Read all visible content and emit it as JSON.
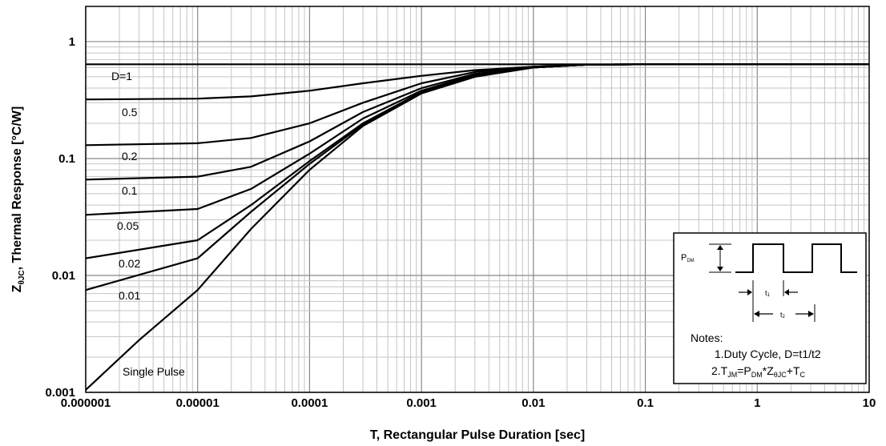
{
  "chart_data": {
    "type": "line",
    "x_scale": "log",
    "y_scale": "log",
    "xlim": [
      1e-06,
      10
    ],
    "ylim": [
      0.001,
      2
    ],
    "grid": true,
    "xlabel": "T, Rectangular Pulse Duration [sec]",
    "ylabel_main": "Z",
    "ylabel_sub": "θJC",
    "ylabel_rest": ", Thermal Response [°C/W]",
    "x_ticks": [
      {
        "value": 1e-06,
        "label": "0.000001"
      },
      {
        "value": 1e-05,
        "label": "0.00001"
      },
      {
        "value": 0.0001,
        "label": "0.0001"
      },
      {
        "value": 0.001,
        "label": "0.001"
      },
      {
        "value": 0.01,
        "label": "0.01"
      },
      {
        "value": 0.1,
        "label": "0.1"
      },
      {
        "value": 1,
        "label": "1"
      },
      {
        "value": 10,
        "label": "10"
      }
    ],
    "y_ticks": [
      {
        "value": 0.001,
        "label": "0.001"
      },
      {
        "value": 0.01,
        "label": "0.01"
      },
      {
        "value": 0.1,
        "label": "0.1"
      },
      {
        "value": 1,
        "label": "1"
      }
    ],
    "series": [
      {
        "name": "D=1",
        "x": [
          1e-06,
          1e-05,
          0.0001,
          0.001,
          0.01,
          0.1,
          1,
          10
        ],
        "y": [
          0.64,
          0.64,
          0.64,
          0.64,
          0.64,
          0.64,
          0.64,
          0.64
        ]
      },
      {
        "name": "0.5",
        "x": [
          1e-06,
          1e-05,
          3e-05,
          0.0001,
          0.0003,
          0.001,
          0.003,
          0.01,
          0.03,
          0.1
        ],
        "y": [
          0.32,
          0.325,
          0.34,
          0.38,
          0.44,
          0.51,
          0.57,
          0.61,
          0.635,
          0.64
        ]
      },
      {
        "name": "0.2",
        "x": [
          1e-06,
          1e-05,
          3e-05,
          0.0001,
          0.0003,
          0.001,
          0.003,
          0.01,
          0.03,
          0.1
        ],
        "y": [
          0.13,
          0.135,
          0.15,
          0.2,
          0.3,
          0.44,
          0.55,
          0.61,
          0.635,
          0.64
        ]
      },
      {
        "name": "0.1",
        "x": [
          1e-06,
          1e-05,
          3e-05,
          0.0001,
          0.0003,
          0.001,
          0.003,
          0.01,
          0.03,
          0.1
        ],
        "y": [
          0.066,
          0.07,
          0.085,
          0.14,
          0.25,
          0.4,
          0.53,
          0.6,
          0.635,
          0.64
        ]
      },
      {
        "name": "0.05",
        "x": [
          1e-06,
          1e-05,
          3e-05,
          0.0001,
          0.0003,
          0.001,
          0.003,
          0.01,
          0.03,
          0.1
        ],
        "y": [
          0.033,
          0.037,
          0.055,
          0.11,
          0.22,
          0.38,
          0.52,
          0.6,
          0.635,
          0.64
        ]
      },
      {
        "name": "0.02",
        "x": [
          1e-06,
          1e-05,
          3e-05,
          0.0001,
          0.0003,
          0.001,
          0.003,
          0.01,
          0.03,
          0.1
        ],
        "y": [
          0.014,
          0.02,
          0.04,
          0.095,
          0.2,
          0.37,
          0.51,
          0.6,
          0.635,
          0.64
        ]
      },
      {
        "name": "0.01",
        "x": [
          1e-06,
          1e-05,
          3e-05,
          0.0001,
          0.0003,
          0.001,
          0.003,
          0.01,
          0.03,
          0.1
        ],
        "y": [
          0.0075,
          0.014,
          0.035,
          0.09,
          0.195,
          0.365,
          0.51,
          0.6,
          0.635,
          0.64
        ]
      },
      {
        "name": "Single Pulse",
        "x": [
          1e-06,
          3e-06,
          1e-05,
          3e-05,
          0.0001,
          0.0003,
          0.001,
          0.003,
          0.01,
          0.03,
          0.1,
          0.2
        ],
        "y": [
          0.00105,
          0.0028,
          0.0075,
          0.025,
          0.08,
          0.19,
          0.36,
          0.5,
          0.6,
          0.635,
          0.64,
          0.64
        ]
      }
    ],
    "notes": {
      "pdm_main": "P",
      "pdm_sub": "DM",
      "t1_main": "t",
      "t1_sub": "1",
      "t2_main": "t",
      "t2_sub": "2",
      "title": "Notes:",
      "line1": "1.Duty Cycle, D=t1/t2",
      "line2_parts": [
        {
          "t": "2.T",
          "sub": false
        },
        {
          "t": "JM",
          "sub": true
        },
        {
          "t": "=P",
          "sub": false
        },
        {
          "t": "DM",
          "sub": true
        },
        {
          "t": "*Z",
          "sub": false
        },
        {
          "t": "θJC",
          "sub": true
        },
        {
          "t": "+T",
          "sub": false
        },
        {
          "t": "C",
          "sub": true
        }
      ]
    }
  }
}
